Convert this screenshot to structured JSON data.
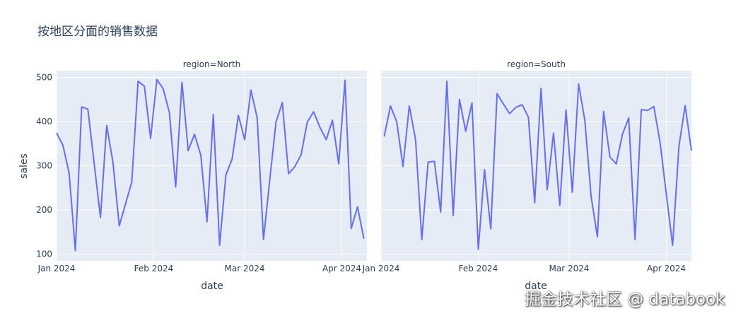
{
  "chart_data": {
    "type": "line",
    "title": "按地区分面的销售数据",
    "xlabel": "date",
    "ylabel": "sales",
    "ylim": [
      85,
      515
    ],
    "xlim": [
      "2024-01-01",
      "2024-04-09"
    ],
    "yticks": [
      100,
      200,
      300,
      400,
      500
    ],
    "xticks": [
      {
        "date": "2024-01-01",
        "label": "Jan 2024"
      },
      {
        "date": "2024-02-01",
        "label": "Feb 2024"
      },
      {
        "date": "2024-03-01",
        "label": "Mar 2024"
      },
      {
        "date": "2024-04-01",
        "label": "Apr 2024"
      }
    ],
    "line_color": "#636efa",
    "plot_bg": "#E5ECF6",
    "facets": [
      {
        "label": "region=North",
        "x": [
          "2024-01-01",
          "2024-01-03",
          "2024-01-05",
          "2024-01-07",
          "2024-01-09",
          "2024-01-11",
          "2024-01-13",
          "2024-01-15",
          "2024-01-17",
          "2024-01-19",
          "2024-01-21",
          "2024-01-23",
          "2024-01-25",
          "2024-01-27",
          "2024-01-29",
          "2024-01-31",
          "2024-02-02",
          "2024-02-04",
          "2024-02-06",
          "2024-02-08",
          "2024-02-10",
          "2024-02-12",
          "2024-02-14",
          "2024-02-16",
          "2024-02-18",
          "2024-02-20",
          "2024-02-22",
          "2024-02-24",
          "2024-02-26",
          "2024-02-28",
          "2024-03-01",
          "2024-03-03",
          "2024-03-05",
          "2024-03-07",
          "2024-03-09",
          "2024-03-11",
          "2024-03-13",
          "2024-03-15",
          "2024-03-17",
          "2024-03-19",
          "2024-03-21",
          "2024-03-23",
          "2024-03-25",
          "2024-03-27",
          "2024-03-29",
          "2024-03-31",
          "2024-04-02",
          "2024-04-04",
          "2024-04-06",
          "2024-04-08"
        ],
        "y": [
          374,
          347,
          284,
          108,
          433,
          428,
          305,
          183,
          391,
          307,
          164,
          214,
          263,
          491,
          480,
          362,
          495,
          474,
          420,
          252,
          489,
          334,
          371,
          324,
          173,
          416,
          120,
          279,
          315,
          414,
          359,
          471,
          408,
          133,
          267,
          399,
          443,
          282,
          298,
          325,
          399,
          422,
          387,
          359,
          403,
          304,
          493,
          158,
          207,
          135
        ]
      },
      {
        "label": "region=South",
        "x": [
          "2024-01-02",
          "2024-01-04",
          "2024-01-06",
          "2024-01-08",
          "2024-01-10",
          "2024-01-12",
          "2024-01-14",
          "2024-01-16",
          "2024-01-18",
          "2024-01-20",
          "2024-01-22",
          "2024-01-24",
          "2024-01-26",
          "2024-01-28",
          "2024-01-30",
          "2024-02-01",
          "2024-02-03",
          "2024-02-05",
          "2024-02-07",
          "2024-02-09",
          "2024-02-11",
          "2024-02-13",
          "2024-02-15",
          "2024-02-17",
          "2024-02-19",
          "2024-02-21",
          "2024-02-23",
          "2024-02-25",
          "2024-02-27",
          "2024-02-29",
          "2024-03-02",
          "2024-03-04",
          "2024-03-06",
          "2024-03-08",
          "2024-03-10",
          "2024-03-12",
          "2024-03-14",
          "2024-03-16",
          "2024-03-18",
          "2024-03-20",
          "2024-03-22",
          "2024-03-24",
          "2024-03-26",
          "2024-03-28",
          "2024-03-30",
          "2024-04-01",
          "2024-04-03",
          "2024-04-05",
          "2024-04-07",
          "2024-04-09"
        ],
        "y": [
          366,
          435,
          399,
          298,
          435,
          359,
          133,
          308,
          310,
          195,
          491,
          187,
          450,
          378,
          442,
          111,
          291,
          157,
          463,
          440,
          418,
          432,
          438,
          410,
          216,
          475,
          246,
          374,
          210,
          426,
          240,
          485,
          403,
          230,
          139,
          423,
          320,
          304,
          371,
          408,
          133,
          427,
          425,
          434,
          352,
          235,
          120,
          344,
          436,
          334
        ]
      }
    ]
  },
  "watermark": "掘金技术社区 @ databook"
}
